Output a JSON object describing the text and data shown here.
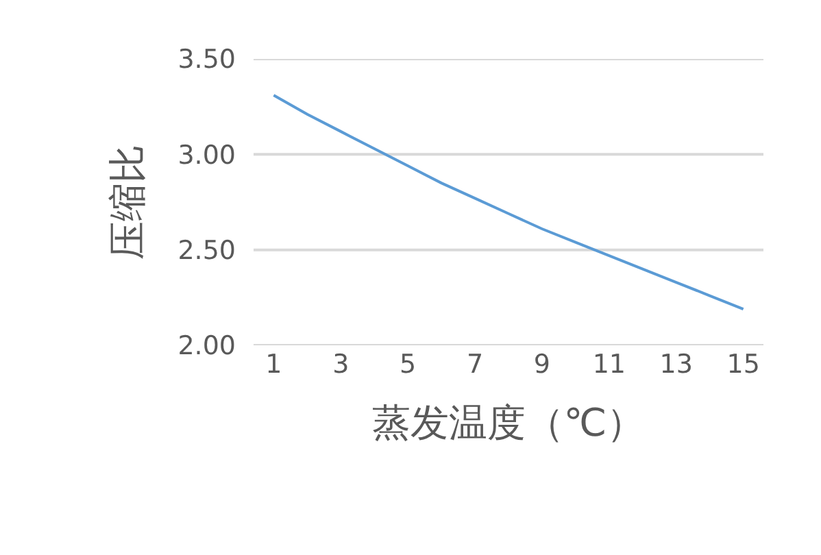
{
  "chart_data": {
    "type": "line",
    "xlabel": "蒸发温度（℃）",
    "ylabel": "压缩比",
    "x": [
      1,
      2,
      3,
      4,
      5,
      6,
      7,
      8,
      9,
      10,
      11,
      12,
      13,
      14,
      15
    ],
    "series": [
      {
        "color": "#5b9bd5",
        "values": [
          3.31,
          3.21,
          3.12,
          3.03,
          2.94,
          2.85,
          2.77,
          2.69,
          2.61,
          2.54,
          2.47,
          2.4,
          2.33,
          2.26,
          2.19
        ]
      }
    ],
    "xlim": [
      0.4,
      15.6
    ],
    "xticks": [
      1,
      3,
      5,
      7,
      9,
      11,
      13,
      15
    ],
    "ylim": [
      2.0,
      3.5
    ],
    "yticks": [
      {
        "value": 2.0,
        "label": "2.00"
      },
      {
        "value": 2.5,
        "label": "2.50"
      },
      {
        "value": 3.0,
        "label": "3.00"
      },
      {
        "value": 3.5,
        "label": "3.50"
      }
    ],
    "grid": "y",
    "marker": "none",
    "line_style": "solid"
  }
}
